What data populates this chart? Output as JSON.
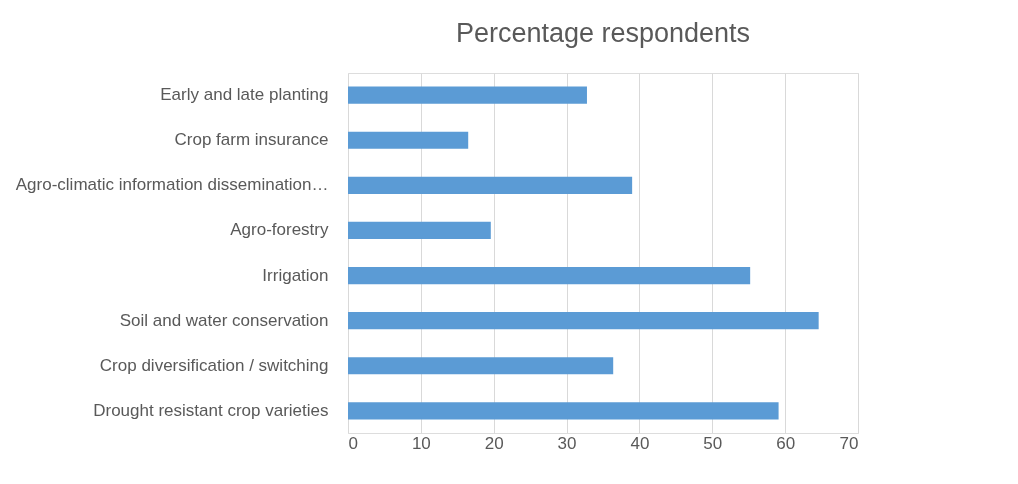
{
  "chart_data": {
    "type": "bar",
    "orientation": "horizontal",
    "title": "Percentage respondents",
    "categories": [
      "Early and late planting",
      "Crop farm insurance",
      "Agro-climatic information dissemination…",
      "Agro-forestry",
      "Irrigation ",
      "Soil and water conservation",
      "Crop diversification / switching",
      "Drought resistant crop varieties"
    ],
    "values": [
      32.8,
      16.5,
      39,
      19.6,
      55.2,
      64.6,
      36.4,
      59.1
    ],
    "color": "#5b9bd5",
    "xlim": [
      0,
      70
    ],
    "xticks": [
      0,
      10,
      20,
      30,
      40,
      50,
      60,
      70
    ],
    "grid": "x"
  }
}
